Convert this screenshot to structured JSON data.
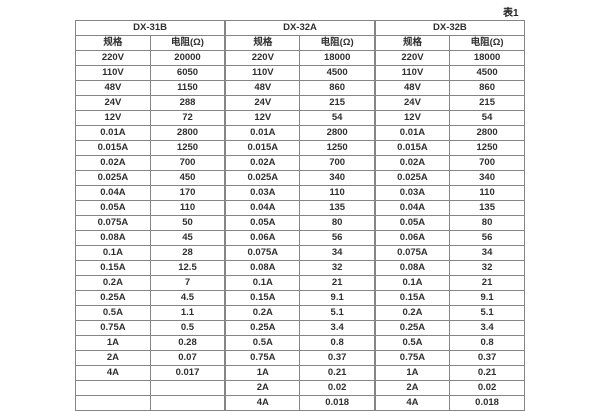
{
  "caption": "表1",
  "colors": {
    "background": "#ffffff",
    "border": "#858585",
    "text": "#2f2f2f"
  },
  "table": {
    "groups": [
      {
        "title": "DX-31B",
        "spec_header": "规格",
        "resistance_header": "电阻(Ω)",
        "rows": [
          [
            "220V",
            "20000"
          ],
          [
            "110V",
            "6050"
          ],
          [
            "48V",
            "1150"
          ],
          [
            "24V",
            "288"
          ],
          [
            "12V",
            "72"
          ],
          [
            "0.01A",
            "2800"
          ],
          [
            "0.015A",
            "1250"
          ],
          [
            "0.02A",
            "700"
          ],
          [
            "0.025A",
            "450"
          ],
          [
            "0.04A",
            "170"
          ],
          [
            "0.05A",
            "110"
          ],
          [
            "0.075A",
            "50"
          ],
          [
            "0.08A",
            "45"
          ],
          [
            "0.1A",
            "28"
          ],
          [
            "0.15A",
            "12.5"
          ],
          [
            "0.2A",
            "7"
          ],
          [
            "0.25A",
            "4.5"
          ],
          [
            "0.5A",
            "1.1"
          ],
          [
            "0.75A",
            "0.5"
          ],
          [
            "1A",
            "0.28"
          ],
          [
            "2A",
            "0.07"
          ],
          [
            "4A",
            "0.017"
          ],
          [
            "",
            ""
          ],
          [
            "",
            ""
          ]
        ]
      },
      {
        "title": "DX-32A",
        "spec_header": "规格",
        "resistance_header": "电阻(Ω)",
        "rows": [
          [
            "220V",
            "18000"
          ],
          [
            "110V",
            "4500"
          ],
          [
            "48V",
            "860"
          ],
          [
            "24V",
            "215"
          ],
          [
            "12V",
            "54"
          ],
          [
            "0.01A",
            "2800"
          ],
          [
            "0.015A",
            "1250"
          ],
          [
            "0.02A",
            "700"
          ],
          [
            "0.025A",
            "340"
          ],
          [
            "0.03A",
            "110"
          ],
          [
            "0.04A",
            "135"
          ],
          [
            "0.05A",
            "80"
          ],
          [
            "0.06A",
            "56"
          ],
          [
            "0.075A",
            "34"
          ],
          [
            "0.08A",
            "32"
          ],
          [
            "0.1A",
            "21"
          ],
          [
            "0.15A",
            "9.1"
          ],
          [
            "0.2A",
            "5.1"
          ],
          [
            "0.25A",
            "3.4"
          ],
          [
            "0.5A",
            "0.8"
          ],
          [
            "0.75A",
            "0.37"
          ],
          [
            "1A",
            "0.21"
          ],
          [
            "2A",
            "0.02"
          ],
          [
            "4A",
            "0.018"
          ]
        ]
      },
      {
        "title": "DX-32B",
        "spec_header": "规格",
        "resistance_header": "电阻(Ω)",
        "rows": [
          [
            "220V",
            "18000"
          ],
          [
            "110V",
            "4500"
          ],
          [
            "48V",
            "860"
          ],
          [
            "24V",
            "215"
          ],
          [
            "12V",
            "54"
          ],
          [
            "0.01A",
            "2800"
          ],
          [
            "0.015A",
            "1250"
          ],
          [
            "0.02A",
            "700"
          ],
          [
            "0.025A",
            "340"
          ],
          [
            "0.03A",
            "110"
          ],
          [
            "0.04A",
            "135"
          ],
          [
            "0.05A",
            "80"
          ],
          [
            "0.06A",
            "56"
          ],
          [
            "0.075A",
            "34"
          ],
          [
            "0.08A",
            "32"
          ],
          [
            "0.1A",
            "21"
          ],
          [
            "0.15A",
            "9.1"
          ],
          [
            "0.2A",
            "5.1"
          ],
          [
            "0.25A",
            "3.4"
          ],
          [
            "0.5A",
            "0.8"
          ],
          [
            "0.75A",
            "0.37"
          ],
          [
            "1A",
            "0.21"
          ],
          [
            "2A",
            "0.02"
          ],
          [
            "4A",
            "0.018"
          ]
        ]
      }
    ]
  }
}
